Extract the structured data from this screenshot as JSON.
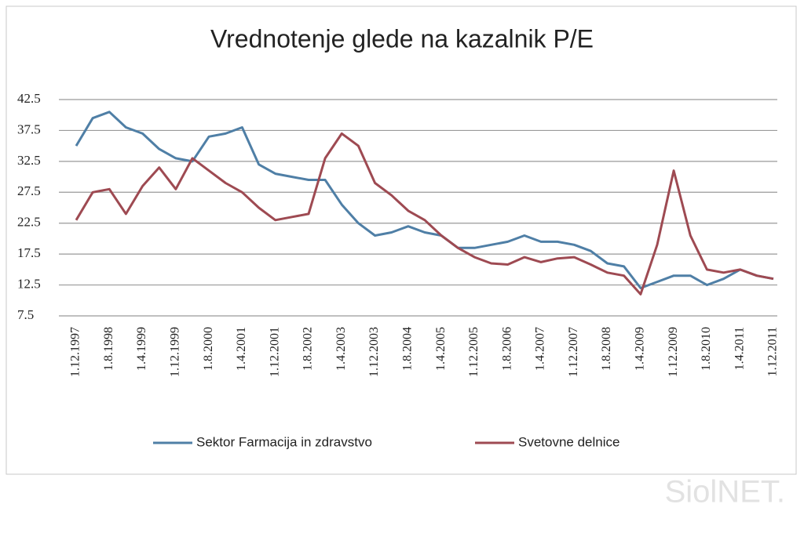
{
  "chart_data": {
    "type": "line",
    "title": "Vrednotenje glede na kazalnik P/E",
    "categories": [
      "1.12.1997",
      null,
      "1.8.1998",
      null,
      "1.4.1999",
      null,
      "1.12.1999",
      null,
      "1.8.2000",
      null,
      "1.4.2001",
      null,
      "1.12.2001",
      null,
      "1.8.2002",
      null,
      "1.4.2003",
      null,
      "1.12.2003",
      null,
      "1.8.2004",
      null,
      "1.4.2005",
      null,
      "1.12.2005",
      null,
      "1.8.2006",
      null,
      "1.4.2007",
      null,
      "1.12.2007",
      null,
      "1.8.2008",
      null,
      "1.4.2009",
      null,
      "1.12.2009",
      null,
      "1.8.2010",
      null,
      "1.4.2011",
      null,
      "1.12.2011"
    ],
    "series": [
      {
        "name": "Sektor Farmacija in zdravstvo",
        "color": "#4f7fa6",
        "values": [
          35,
          39.5,
          40.5,
          38,
          37,
          34.5,
          33,
          32.5,
          36.5,
          37,
          38,
          32,
          30.5,
          30,
          29.5,
          29.5,
          25.5,
          22.5,
          20.5,
          21,
          22,
          21,
          20.5,
          18.5,
          18.5,
          19,
          19.5,
          20.5,
          19.5,
          19.5,
          19,
          18,
          16,
          15.5,
          12,
          13,
          14,
          14,
          12.5,
          13.5,
          15,
          14,
          13.5
        ]
      },
      {
        "name": "Svetovne delnice",
        "color": "#9e4a52",
        "values": [
          23,
          27.5,
          28,
          24,
          28.5,
          31.5,
          28,
          33,
          31,
          29,
          27.5,
          25,
          23,
          23.5,
          24,
          33,
          37,
          35,
          29,
          27,
          24.5,
          23,
          20.5,
          18.5,
          17,
          16,
          15.8,
          17,
          16.2,
          16.8,
          17,
          15.8,
          14.5,
          14,
          11,
          19,
          31,
          20.5,
          15,
          14.5,
          15,
          14,
          13.5
        ]
      }
    ],
    "ylim": [
      7.5,
      42.5
    ],
    "yticks": [
      7.5,
      12.5,
      17.5,
      22.5,
      27.5,
      32.5,
      37.5,
      42.5
    ],
    "grid": true,
    "legend": "bottom",
    "watermark": "SiolNET."
  }
}
